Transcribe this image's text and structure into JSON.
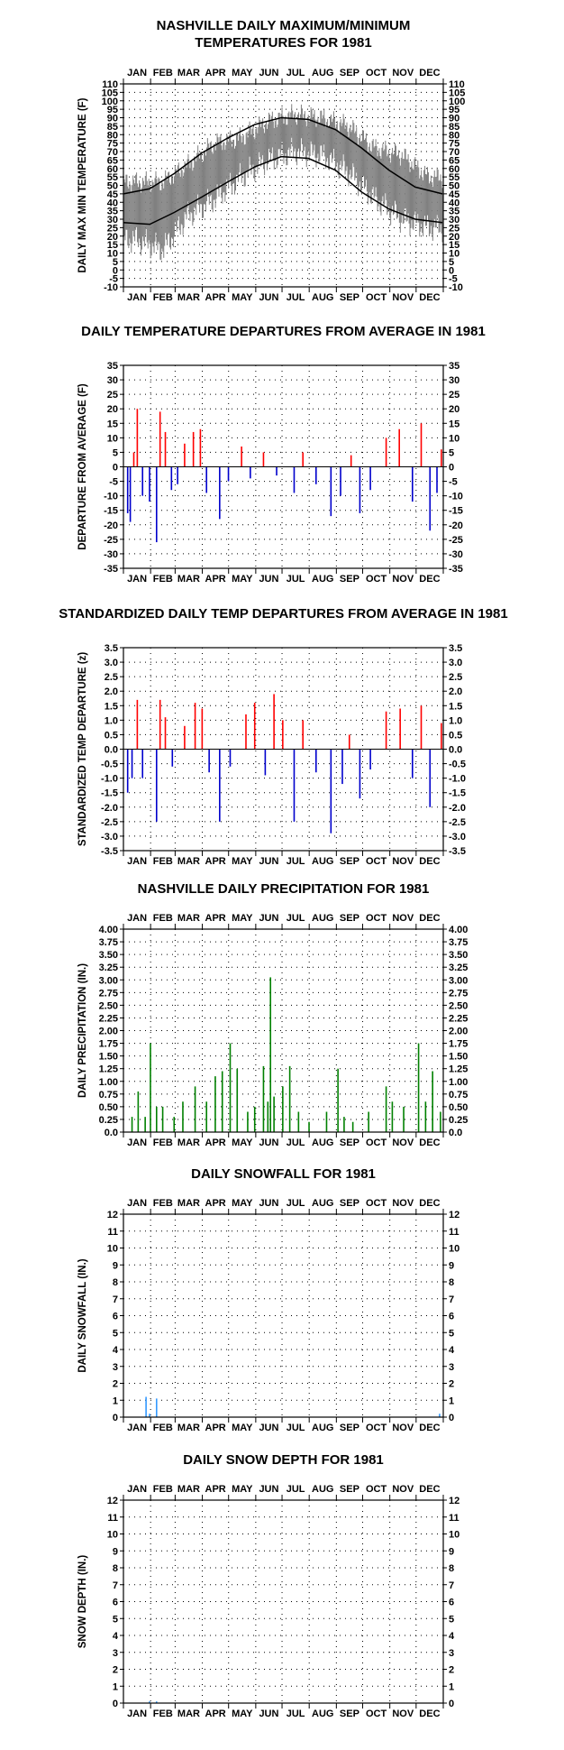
{
  "year": "1981",
  "months": [
    "JAN",
    "FEB",
    "MAR",
    "APR",
    "MAY",
    "JUN",
    "JUL",
    "AUG",
    "SEP",
    "OCT",
    "NOV",
    "DEC"
  ],
  "colors": {
    "temperature": "#808080",
    "normals": "#000000",
    "positive": "#ff0000",
    "negative": "#0000cc",
    "precipitation": "#008000",
    "snow": "#3399ff",
    "grid": "#000000"
  },
  "chart_data": [
    {
      "id": "temperature",
      "type": "line",
      "title": [
        "NASHVILLE DAILY MAXIMUM/MINIMUM",
        "TEMPERATURES FOR 1981"
      ],
      "ylabel": "DAILY MAX MIN TEMPERATURE (F)",
      "ylim": [
        -10,
        110
      ],
      "yticks": [
        -10,
        -5,
        0,
        5,
        10,
        15,
        20,
        25,
        30,
        35,
        40,
        45,
        50,
        55,
        60,
        65,
        70,
        75,
        80,
        85,
        90,
        95,
        100,
        105,
        110
      ],
      "ytick_labels": [
        "-10",
        "-5",
        "0",
        "5",
        "10",
        "15",
        "20",
        "25",
        "30",
        "35",
        "40",
        "45",
        "50",
        "55",
        "60",
        "65",
        "70",
        "75",
        "80",
        "85",
        "90",
        "95",
        "100",
        "105",
        "110"
      ],
      "month_axis": "top and bottom",
      "grid": "dotted",
      "series": [
        {
          "kind": "daily range",
          "x_step": "monthly sample (approx.)",
          "x": [
            15,
            46,
            74,
            105,
            135,
            166,
            196,
            227,
            258,
            288,
            319,
            349
          ],
          "values_max": [
            52,
            52,
            62,
            75,
            78,
            88,
            92,
            90,
            85,
            72,
            68,
            55
          ],
          "values_min": [
            18,
            12,
            32,
            42,
            55,
            65,
            70,
            68,
            58,
            42,
            30,
            25
          ]
        },
        {
          "kind": "normal max",
          "x": [
            1,
            31,
            59,
            90,
            120,
            151,
            181,
            212,
            243,
            273,
            304,
            334,
            365
          ],
          "values": [
            45,
            48,
            57,
            69,
            78,
            86,
            90,
            89,
            83,
            72,
            59,
            49,
            45
          ]
        },
        {
          "kind": "normal min",
          "x": [
            1,
            31,
            59,
            90,
            120,
            151,
            181,
            212,
            243,
            273,
            304,
            334,
            365
          ],
          "values": [
            28,
            27,
            34,
            43,
            52,
            61,
            67,
            66,
            59,
            46,
            36,
            30,
            28
          ]
        }
      ]
    },
    {
      "id": "departure",
      "type": "bar",
      "title": [
        "DAILY TEMPERATURE DEPARTURES FROM AVERAGE IN 1981"
      ],
      "ylabel": "DEPARTURE FROM AVERAGE (F)",
      "ylim": [
        -35,
        35
      ],
      "yticks": [
        -35,
        -30,
        -25,
        -20,
        -15,
        -10,
        -5,
        0,
        5,
        10,
        15,
        20,
        25,
        30,
        35
      ],
      "ytick_labels": [
        "-35",
        "-30",
        "-25",
        "-20",
        "-15",
        "-10",
        "-5",
        "0",
        "5",
        "10",
        "15",
        "20",
        "25",
        "30",
        "35"
      ],
      "month_axis": "bottom",
      "grid": "dotted",
      "bars": [
        [
          5,
          -16
        ],
        [
          8,
          -19
        ],
        [
          12,
          5
        ],
        [
          16,
          20
        ],
        [
          22,
          -10
        ],
        [
          30,
          -12
        ],
        [
          38,
          -26
        ],
        [
          42,
          19
        ],
        [
          48,
          12
        ],
        [
          55,
          -8
        ],
        [
          62,
          -6
        ],
        [
          70,
          8
        ],
        [
          80,
          12
        ],
        [
          88,
          13
        ],
        [
          95,
          -9
        ],
        [
          110,
          -18
        ],
        [
          120,
          -5
        ],
        [
          135,
          7
        ],
        [
          145,
          -4
        ],
        [
          160,
          5
        ],
        [
          175,
          -3
        ],
        [
          195,
          -9
        ],
        [
          205,
          5
        ],
        [
          220,
          -6
        ],
        [
          237,
          -17
        ],
        [
          248,
          -10
        ],
        [
          260,
          4
        ],
        [
          270,
          -16
        ],
        [
          282,
          -8
        ],
        [
          300,
          10
        ],
        [
          315,
          13
        ],
        [
          330,
          -12
        ],
        [
          340,
          15
        ],
        [
          350,
          -22
        ],
        [
          358,
          -9
        ],
        [
          363,
          6
        ]
      ]
    },
    {
      "id": "standardized",
      "type": "bar",
      "title": [
        "STANDARDIZED DAILY TEMP DEPARTURES FROM AVERAGE IN 1981"
      ],
      "ylabel": "STANDARDIZED TEMP DEPARTURE (z)",
      "ylim": [
        -3.5,
        3.5
      ],
      "yticks": [
        -3.5,
        -3.0,
        -2.5,
        -2.0,
        -1.5,
        -1.0,
        -0.5,
        0,
        0.5,
        1.0,
        1.5,
        2.0,
        2.5,
        3.0,
        3.5
      ],
      "ytick_labels": [
        "-3.5",
        "-3.0",
        "-2.5",
        "-2.0",
        "-1.5",
        "-1.0",
        "-0.5",
        "0.0",
        "0.5",
        "1.0",
        "1.5",
        "2.0",
        "2.5",
        "3.0",
        "3.5"
      ],
      "month_axis": "bottom",
      "grid": "dotted",
      "bars": [
        [
          5,
          -1.5
        ],
        [
          10,
          -1.0
        ],
        [
          16,
          1.7
        ],
        [
          22,
          -1.0
        ],
        [
          38,
          -2.5
        ],
        [
          42,
          1.7
        ],
        [
          48,
          1.1
        ],
        [
          56,
          -0.6
        ],
        [
          70,
          0.8
        ],
        [
          82,
          1.6
        ],
        [
          90,
          1.4
        ],
        [
          98,
          -0.8
        ],
        [
          110,
          -2.5
        ],
        [
          122,
          -0.6
        ],
        [
          140,
          1.2
        ],
        [
          150,
          1.6
        ],
        [
          162,
          -0.9
        ],
        [
          172,
          1.9
        ],
        [
          182,
          1.0
        ],
        [
          195,
          -2.5
        ],
        [
          205,
          1.0
        ],
        [
          220,
          -0.8
        ],
        [
          237,
          -2.9
        ],
        [
          250,
          -1.2
        ],
        [
          258,
          0.5
        ],
        [
          270,
          -1.7
        ],
        [
          282,
          -0.7
        ],
        [
          300,
          1.3
        ],
        [
          316,
          1.4
        ],
        [
          330,
          -1.0
        ],
        [
          340,
          1.5
        ],
        [
          350,
          -2.0
        ],
        [
          363,
          0.9
        ]
      ]
    },
    {
      "id": "precipitation",
      "type": "bar",
      "title": [
        "NASHVILLE DAILY PRECIPITATION FOR 1981"
      ],
      "ylabel": "DAILY PRECIPITATION (IN.)",
      "ylim": [
        0,
        4.0
      ],
      "yticks": [
        0,
        0.25,
        0.5,
        0.75,
        1.0,
        1.25,
        1.5,
        1.75,
        2.0,
        2.25,
        2.5,
        2.75,
        3.0,
        3.25,
        3.5,
        3.75,
        4.0
      ],
      "ytick_labels": [
        "0.0",
        "0.25",
        "0.50",
        "0.75",
        "1.00",
        "1.25",
        "1.50",
        "1.75",
        "2.00",
        "2.25",
        "2.50",
        "2.75",
        "3.00",
        "3.25",
        "3.50",
        "3.75",
        "4.00"
      ],
      "month_axis": "top and bottom",
      "grid": "dotted",
      "bars": [
        [
          10,
          0.3
        ],
        [
          17,
          0.8
        ],
        [
          25,
          0.3
        ],
        [
          31,
          1.75
        ],
        [
          38,
          0.5
        ],
        [
          45,
          0.5
        ],
        [
          58,
          0.3
        ],
        [
          68,
          0.6
        ],
        [
          82,
          0.9
        ],
        [
          95,
          0.6
        ],
        [
          105,
          1.1
        ],
        [
          113,
          1.2
        ],
        [
          122,
          1.75
        ],
        [
          130,
          1.25
        ],
        [
          142,
          0.4
        ],
        [
          150,
          0.5
        ],
        [
          160,
          1.3
        ],
        [
          165,
          0.6
        ],
        [
          168,
          3.05
        ],
        [
          172,
          0.7
        ],
        [
          182,
          0.9
        ],
        [
          190,
          1.3
        ],
        [
          200,
          0.4
        ],
        [
          212,
          0.2
        ],
        [
          232,
          0.4
        ],
        [
          245,
          1.25
        ],
        [
          252,
          0.3
        ],
        [
          262,
          0.2
        ],
        [
          280,
          0.4
        ],
        [
          300,
          0.9
        ],
        [
          307,
          0.6
        ],
        [
          320,
          0.5
        ],
        [
          337,
          1.75
        ],
        [
          345,
          0.6
        ],
        [
          353,
          1.2
        ],
        [
          362,
          0.4
        ]
      ]
    },
    {
      "id": "snowfall",
      "type": "bar",
      "title": [
        "DAILY SNOWFALL FOR 1981"
      ],
      "ylabel": "DAILY SNOWFALL (IN.)",
      "ylim": [
        0,
        12
      ],
      "yticks": [
        0,
        1,
        2,
        3,
        4,
        5,
        6,
        7,
        8,
        9,
        10,
        11,
        12
      ],
      "ytick_labels": [
        "0",
        "1",
        "2",
        "3",
        "4",
        "5",
        "6",
        "7",
        "8",
        "9",
        "10",
        "11",
        "12"
      ],
      "month_axis": "top and bottom",
      "grid": "dotted",
      "bars": [
        [
          26,
          1.2
        ],
        [
          30,
          0.2
        ],
        [
          38,
          1.1
        ],
        [
          361,
          0.2
        ]
      ]
    },
    {
      "id": "snowdepth",
      "type": "bar",
      "title": [
        "DAILY SNOW DEPTH FOR 1981"
      ],
      "ylabel": "SNOW DEPTH (IN.)",
      "ylim": [
        0,
        12
      ],
      "yticks": [
        0,
        1,
        2,
        3,
        4,
        5,
        6,
        7,
        8,
        9,
        10,
        11,
        12
      ],
      "ytick_labels": [
        "0",
        "1",
        "2",
        "3",
        "4",
        "5",
        "6",
        "7",
        "8",
        "9",
        "10",
        "11",
        "12"
      ],
      "month_axis": "top and bottom",
      "grid": "dotted",
      "bars": [
        [
          30,
          0.1
        ],
        [
          38,
          0.1
        ]
      ]
    }
  ]
}
